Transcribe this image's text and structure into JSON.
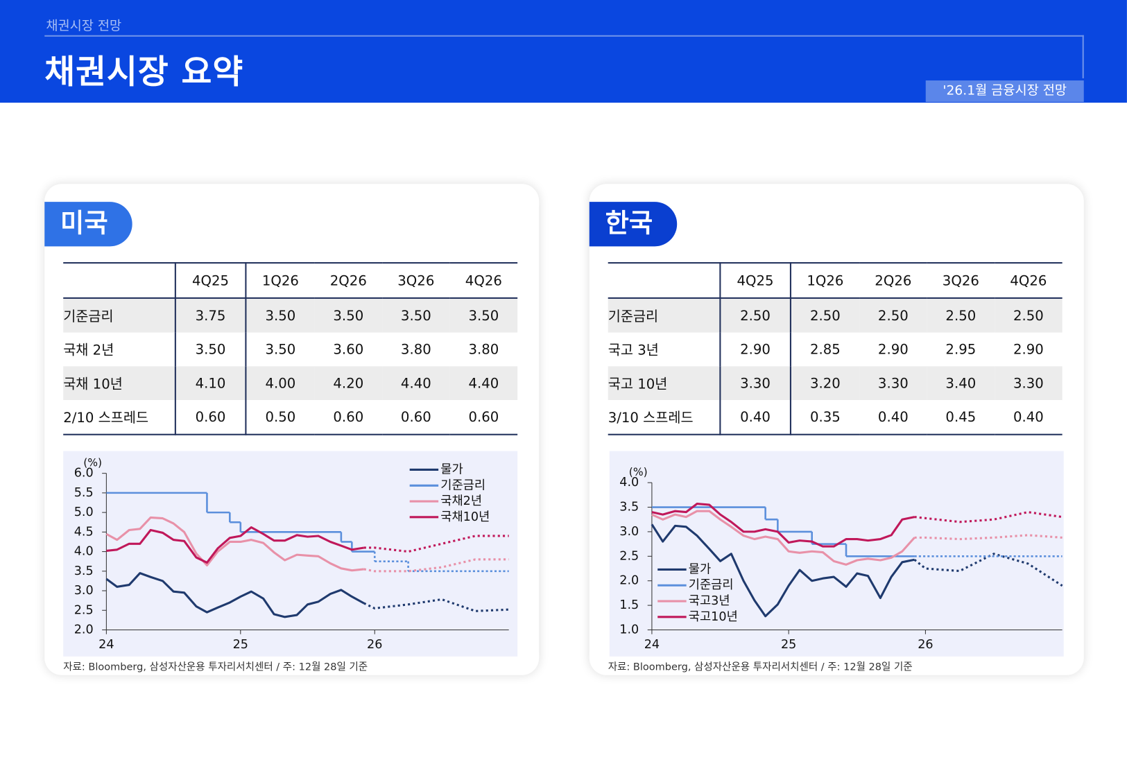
{
  "header": {
    "section": "채권시장 전망",
    "title": "채권시장 요약",
    "badge": "'26.1월 금융시장 전망"
  },
  "panels": [
    {
      "title": "미국",
      "table": {
        "columns": [
          "4Q25",
          "1Q26",
          "2Q26",
          "3Q26",
          "4Q26"
        ],
        "rows": [
          {
            "label": "기준금리",
            "values": [
              "3.75",
              "3.50",
              "3.50",
              "3.50",
              "3.50"
            ]
          },
          {
            "label": "국채 2년",
            "values": [
              "3.50",
              "3.50",
              "3.60",
              "3.80",
              "3.80"
            ]
          },
          {
            "label": "국채 10년",
            "values": [
              "4.10",
              "4.00",
              "4.20",
              "4.40",
              "4.40"
            ]
          },
          {
            "label": "2/10 스프레드",
            "values": [
              "0.60",
              "0.50",
              "0.60",
              "0.60",
              "0.60"
            ]
          }
        ]
      },
      "source": "자료: Bloomberg, 삼성자산운용 투자리서치센터 / 주: 12월 28일 기준"
    },
    {
      "title": "한국",
      "table": {
        "columns": [
          "4Q25",
          "1Q26",
          "2Q26",
          "3Q26",
          "4Q26"
        ],
        "rows": [
          {
            "label": "기준금리",
            "values": [
              "2.50",
              "2.50",
              "2.50",
              "2.50",
              "2.50"
            ]
          },
          {
            "label": "국고 3년",
            "values": [
              "2.90",
              "2.85",
              "2.90",
              "2.95",
              "2.90"
            ]
          },
          {
            "label": "국고 10년",
            "values": [
              "3.30",
              "3.20",
              "3.30",
              "3.40",
              "3.30"
            ]
          },
          {
            "label": "3/10 스프레드",
            "values": [
              "0.40",
              "0.35",
              "0.40",
              "0.45",
              "0.40"
            ]
          }
        ]
      },
      "source": "자료: Bloomberg, 삼성자산운용 투자리서치센터 / 주: 12월 28일 기준"
    }
  ],
  "chart_data": [
    {
      "type": "line",
      "y_label": "(%)",
      "legend": "upper right",
      "xlim": [
        24,
        27
      ],
      "xticks": [
        24,
        25,
        26
      ],
      "ylim": [
        2,
        6
      ],
      "yticks": [
        {
          "value": 2,
          "label": "2.0"
        },
        2.5,
        {
          "value": 3,
          "label": "3.0"
        },
        3.5,
        {
          "value": 4,
          "label": "4.0"
        },
        4.5,
        {
          "value": 5,
          "label": "5.0"
        },
        5.5,
        {
          "value": 6,
          "label": "6.0"
        }
      ],
      "x": [
        24,
        24.08,
        24.17,
        24.25,
        24.33,
        24.42,
        24.5,
        24.58,
        24.67,
        24.75,
        24.83,
        24.92,
        25,
        25.08,
        25.17,
        25.25,
        25.33,
        25.42,
        25.5,
        25.58,
        25.67,
        25.75,
        25.83,
        25.92
      ],
      "series": [
        {
          "name": "물가",
          "color": "#1f3a6e",
          "values": [
            3.3,
            3.1,
            3.15,
            3.45,
            3.35,
            3.25,
            2.98,
            2.95,
            2.6,
            2.45,
            2.57,
            2.7,
            2.85,
            2.98,
            2.8,
            2.4,
            2.33,
            2.38,
            2.65,
            2.72,
            2.92,
            3.02,
            2.85,
            2.68
          ],
          "forecast": {
            "x": [
              25.92,
              26,
              26.25,
              26.5,
              26.75,
              27
            ],
            "values": [
              2.68,
              2.55,
              2.65,
              2.78,
              2.48,
              2.52
            ]
          }
        },
        {
          "name": "기준금리",
          "color": "#5b8fdc",
          "step": true,
          "x": [
            24,
            24.75,
            24.92,
            25,
            25.75,
            25.83
          ],
          "values": [
            5.5,
            5,
            4.75,
            4.5,
            4.25,
            4
          ],
          "forecast": {
            "x": [
              26,
              26.25
            ],
            "values": [
              3.75,
              3.5
            ]
          }
        },
        {
          "name": "국채2년",
          "color": "#e891a8",
          "values": [
            4.45,
            4.3,
            4.55,
            4.58,
            4.87,
            4.85,
            4.72,
            4.5,
            3.95,
            3.65,
            4,
            4.25,
            4.25,
            4.3,
            4.22,
            3.98,
            3.78,
            3.92,
            3.9,
            3.88,
            3.7,
            3.57,
            3.52,
            3.55
          ],
          "forecast": {
            "x": [
              25.92,
              26,
              26.25,
              26.5,
              26.75,
              27
            ],
            "values": [
              3.55,
              3.5,
              3.5,
              3.6,
              3.8,
              3.8
            ]
          }
        },
        {
          "name": "국채10년",
          "color": "#c0185a",
          "values": [
            4.02,
            4.05,
            4.2,
            4.2,
            4.55,
            4.48,
            4.3,
            4.27,
            3.85,
            3.72,
            4.08,
            4.35,
            4.4,
            4.62,
            4.45,
            4.28,
            4.28,
            4.42,
            4.38,
            4.4,
            4.25,
            4.15,
            4.05,
            4.1
          ],
          "forecast": {
            "x": [
              25.92,
              26,
              26.25,
              26.5,
              26.75,
              27
            ],
            "values": [
              4.1,
              4.1,
              4,
              4.2,
              4.4,
              4.4
            ]
          }
        }
      ]
    },
    {
      "type": "line",
      "y_label": "(%)",
      "legend": "lower left",
      "xlim": [
        24,
        27
      ],
      "xticks": [
        24,
        25,
        26
      ],
      "ylim": [
        1,
        4
      ],
      "yticks": [
        {
          "value": 1,
          "label": "1.0"
        },
        1.5,
        {
          "value": 2,
          "label": "2.0"
        },
        2.5,
        {
          "value": 3,
          "label": "3.0"
        },
        3.5,
        {
          "value": 4,
          "label": "4.0"
        }
      ],
      "x": [
        24,
        24.08,
        24.17,
        24.25,
        24.33,
        24.42,
        24.5,
        24.58,
        24.67,
        24.75,
        24.83,
        24.92,
        25,
        25.08,
        25.17,
        25.25,
        25.33,
        25.42,
        25.5,
        25.58,
        25.67,
        25.75,
        25.83,
        25.92
      ],
      "series": [
        {
          "name": "물가",
          "color": "#1f3a6e",
          "values": [
            3.15,
            2.8,
            3.12,
            3.1,
            2.92,
            2.65,
            2.4,
            2.55,
            2,
            1.6,
            1.28,
            1.52,
            1.9,
            2.22,
            2,
            2.05,
            2.08,
            1.88,
            2.15,
            2.1,
            1.65,
            2.08,
            2.38,
            2.43
          ],
          "forecast": {
            "x": [
              25.92,
              26,
              26.25,
              26.5,
              26.75,
              27
            ],
            "values": [
              2.43,
              2.25,
              2.2,
              2.55,
              2.35,
              1.9
            ]
          }
        },
        {
          "name": "기준금리",
          "color": "#5b8fdc",
          "step": true,
          "x": [
            24,
            24.83,
            24.92,
            25.17,
            25.42
          ],
          "values": [
            3.5,
            3.25,
            3,
            2.75,
            2.5
          ],
          "forecast": {
            "x": [
              25.92
            ],
            "values": [
              2.5
            ]
          }
        },
        {
          "name": "국고3년",
          "color": "#e891a8",
          "values": [
            3.35,
            3.25,
            3.35,
            3.3,
            3.42,
            3.42,
            3.25,
            3.1,
            2.92,
            2.85,
            2.9,
            2.85,
            2.6,
            2.57,
            2.6,
            2.58,
            2.4,
            2.33,
            2.42,
            2.45,
            2.42,
            2.47,
            2.6,
            2.88
          ],
          "forecast": {
            "x": [
              25.92,
              26,
              26.25,
              26.5,
              26.75,
              27
            ],
            "values": [
              2.88,
              2.88,
              2.85,
              2.88,
              2.93,
              2.88
            ]
          }
        },
        {
          "name": "국고10년",
          "color": "#c0185a",
          "values": [
            3.4,
            3.35,
            3.42,
            3.4,
            3.57,
            3.55,
            3.35,
            3.2,
            3,
            3,
            3.05,
            3,
            2.78,
            2.82,
            2.8,
            2.7,
            2.7,
            2.85,
            2.85,
            2.82,
            2.85,
            2.93,
            3.25,
            3.3
          ],
          "forecast": {
            "x": [
              25.92,
              26.25,
              26.5,
              26.75,
              27
            ],
            "values": [
              3.3,
              3.2,
              3.25,
              3.4,
              3.3
            ]
          }
        }
      ]
    }
  ]
}
